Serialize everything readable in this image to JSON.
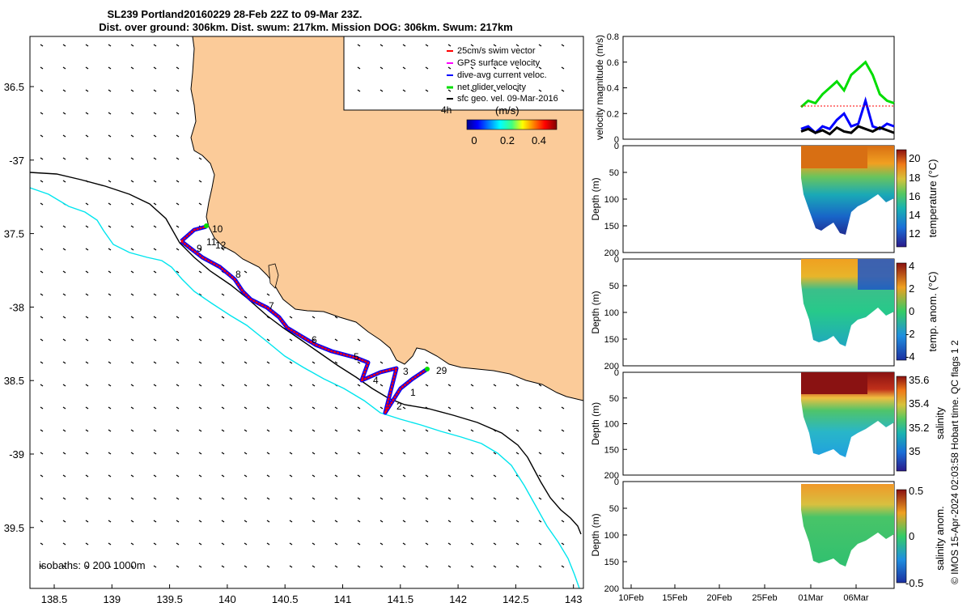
{
  "title": {
    "line1": "SL239 Portland20160229 28-Feb 22Z to 09-Mar 23Z.",
    "line2": "Dist. over ground: 306km. Dist. swum: 217km. Mission DOG: 306km. Swum: 217km"
  },
  "map": {
    "lon_ticks": [
      "138.5",
      "139",
      "139.5",
      "140",
      "140.5",
      "141",
      "141.5",
      "142",
      "142.5",
      "143"
    ],
    "lat_ticks": [
      "36.5",
      "-37",
      "37.5",
      "-38",
      "38.5",
      "-39",
      "39.5"
    ],
    "legend": [
      {
        "label": "25cm/s swim vector",
        "color": "#ff0000"
      },
      {
        "label": "GPS surface velocity",
        "color": "#ff00ff"
      },
      {
        "label": "dive-avg current veloc.",
        "color": "#0000ff"
      },
      {
        "label": "net glider velocity",
        "color": "#00dd00"
      },
      {
        "label": "sfc geo. vel. 09-Mar-2016",
        "color": "#000000"
      }
    ],
    "interval_label": "4h",
    "colorbar_unit": "(m/s)",
    "colorbar_ticks": [
      "0",
      "0.2",
      "0.4"
    ],
    "isobaths_label": "isobaths: 0   200  1000m",
    "waypoint_labels": [
      "1",
      "2",
      "3",
      "4",
      "5",
      "6",
      "7",
      "8",
      "9",
      "10",
      "11",
      "12",
      "29"
    ],
    "colors": {
      "land": "#fbcb99",
      "isobath_1000": "#00e5ee",
      "isobath_200": "#000000"
    }
  },
  "right_panels": {
    "velocity_ylabel": "velocity magnitude (m/s)",
    "depth_ylabel": "Depth (m)",
    "colorbar_labels": [
      "temperature (°C)",
      "temp. anom. (°C)",
      "salinity",
      "salinity anom."
    ],
    "colorbar_ticks": [
      [
        "20",
        "18",
        "16",
        "14",
        "12"
      ],
      [
        "4",
        "2",
        "0",
        "-2",
        "-4"
      ],
      [
        "35.6",
        "35.4",
        "35.2",
        "35"
      ],
      [
        "0.5",
        "0",
        "-0.5"
      ]
    ],
    "date_ticks": [
      "10Feb",
      "15Feb",
      "20Feb",
      "25Feb",
      "01Mar",
      "06Mar"
    ],
    "footer": "© IMOS 15-Apr-2024 02:03:58 Hobart time. QC flags 1  2"
  },
  "chart_data": [
    {
      "type": "line",
      "title": "",
      "xlabel": "",
      "ylabel": "velocity magnitude (m/s)",
      "ylim": [
        0,
        0.8
      ],
      "yticks": [
        0,
        0.2,
        0.4,
        0.6,
        0.8
      ],
      "series": [
        {
          "name": "",
          "color": "#00dd00",
          "values": [
            0.25,
            0.3,
            0.28,
            0.35,
            0.4,
            0.45,
            0.38,
            0.5,
            0.55,
            0.6,
            0.5,
            0.35,
            0.3,
            0.28
          ]
        },
        {
          "name": "",
          "color": "#0000ff",
          "values": [
            0.08,
            0.1,
            0.05,
            0.1,
            0.08,
            0.15,
            0.2,
            0.1,
            0.12,
            0.3,
            0.1,
            0.08,
            0.12,
            0.1
          ]
        },
        {
          "name": "",
          "color": "#000000",
          "values": [
            0.06,
            0.08,
            0.05,
            0.07,
            0.04,
            0.09,
            0.06,
            0.05,
            0.1,
            0.08,
            0.06,
            0.09,
            0.07,
            0.05
          ]
        }
      ]
    },
    {
      "type": "heatmap",
      "ylabel": "Depth (m)",
      "ylim": [
        200,
        0
      ],
      "yticks": [
        0,
        50,
        100,
        150,
        200
      ],
      "colorbar_label": "temperature (°C)",
      "colorbar_range": [
        11,
        20.5
      ]
    },
    {
      "type": "heatmap",
      "ylabel": "Depth (m)",
      "ylim": [
        200,
        0
      ],
      "yticks": [
        0,
        50,
        100,
        150,
        200
      ],
      "colorbar_label": "temp. anom. (°C)",
      "colorbar_range": [
        -4,
        4
      ]
    },
    {
      "type": "heatmap",
      "ylabel": "Depth (m)",
      "ylim": [
        200,
        0
      ],
      "yticks": [
        0,
        50,
        100,
        150,
        200
      ],
      "colorbar_label": "salinity",
      "colorbar_range": [
        34.9,
        35.6
      ]
    },
    {
      "type": "heatmap",
      "ylabel": "Depth (m)",
      "ylim": [
        200,
        0
      ],
      "yticks": [
        0,
        50,
        100,
        150,
        200
      ],
      "colorbar_label": "salinity anom.",
      "colorbar_range": [
        -0.5,
        0.5
      ]
    }
  ]
}
